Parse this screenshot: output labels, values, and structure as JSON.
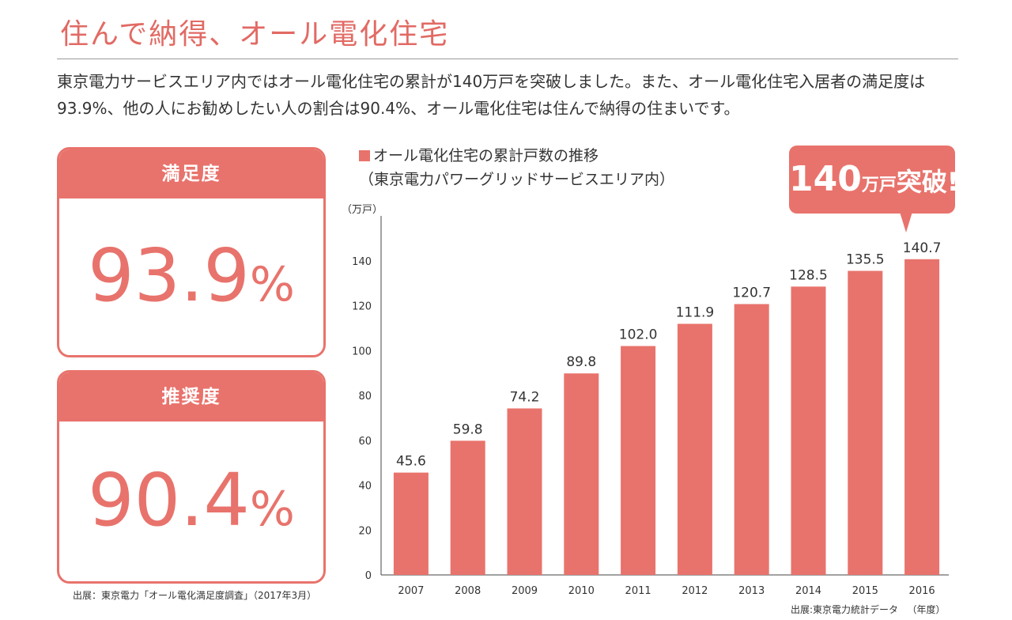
{
  "page": {
    "title": "住んで納得、オール電化住宅",
    "intro": "東京電力サービスエリア内ではオール電化住宅の累計が140万戸を突破しました。また、オール電化住宅入居者の満足度は93.9%、他の人にお勧めしたい人の割合は90.4%、オール電化住宅は住んで納得の住まいです。"
  },
  "cards": [
    {
      "label": "満足度",
      "value": "93.9",
      "unit": "%"
    },
    {
      "label": "推奨度",
      "value": "90.4",
      "unit": "%"
    }
  ],
  "cards_source": "出展：東京電力「オール電化満足度調査」（2017年3月）",
  "callout": {
    "number": "140",
    "unit": "万戸",
    "text": "突破!"
  },
  "colors": {
    "accent": "#e8736c",
    "bar": "#e8736c"
  },
  "chart_data": {
    "type": "bar",
    "title": "オール電化住宅の累計戸数の推移",
    "subtitle": "（東京電力パワーグリッドサービスエリア内）",
    "ylabel": "（万戸）",
    "xlabel": "（年度）",
    "categories": [
      "2007",
      "2008",
      "2009",
      "2010",
      "2011",
      "2012",
      "2013",
      "2014",
      "2015",
      "2016"
    ],
    "values": [
      45.6,
      59.8,
      74.2,
      89.8,
      102.0,
      111.9,
      120.7,
      128.5,
      135.5,
      140.7
    ],
    "value_labels": [
      "45.6",
      "59.8",
      "74.2",
      "89.8",
      "102.0",
      "111.9",
      "120.7",
      "128.5",
      "135.5",
      "140.7"
    ],
    "yticks": [
      0,
      20,
      40,
      60,
      80,
      100,
      120,
      140
    ],
    "ylim": [
      0,
      160
    ],
    "grid": false,
    "source": "出展:東京電力統計データ"
  }
}
